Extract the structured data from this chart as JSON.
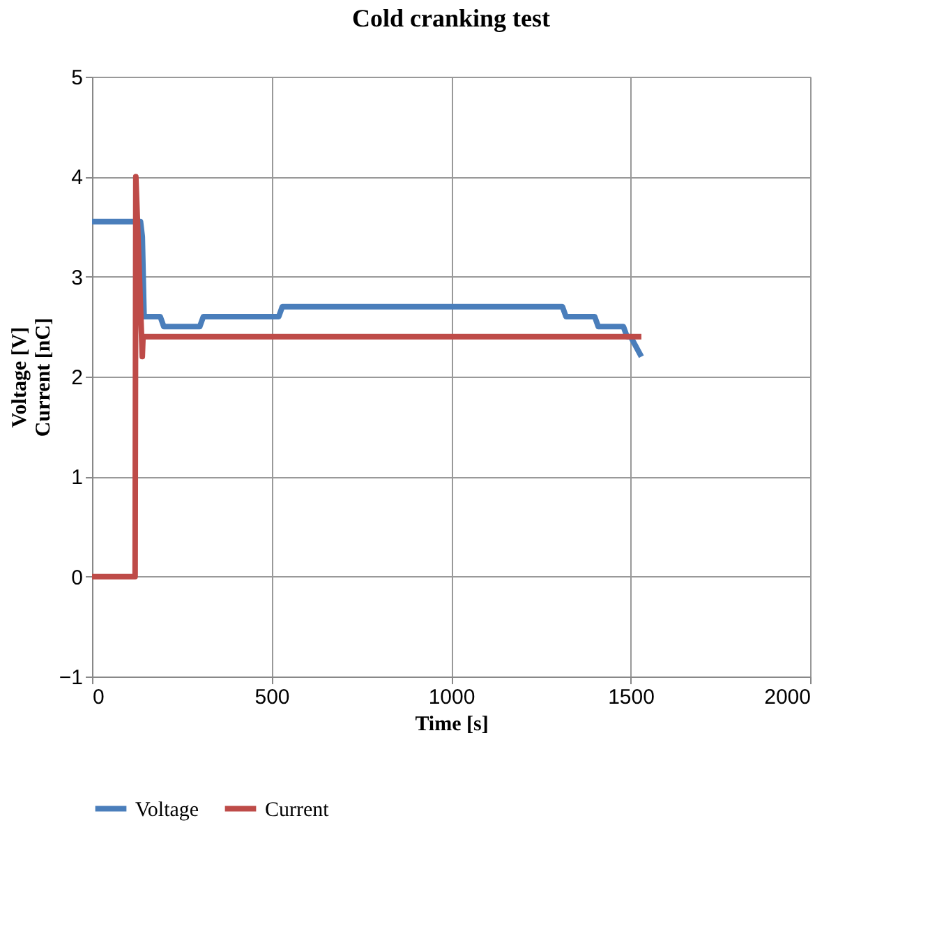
{
  "chart_data": {
    "type": "line",
    "title": "Cold cranking test",
    "xlabel": "Time [s]",
    "ylabel": "Voltage [V]\nCurrent [nC]",
    "xlim": [
      0,
      2000
    ],
    "xticks": [
      0,
      500,
      1000,
      1500,
      2000
    ],
    "ylim": [
      -1,
      5
    ],
    "yticks": [
      -1,
      0,
      1,
      2,
      3,
      4,
      5
    ],
    "grid": true,
    "legend": "bottom",
    "marker": "none",
    "line_style": "solid",
    "series": [
      {
        "name": "Voltage",
        "color": "#4a7ebb",
        "x": [
          0,
          125,
          135,
          140,
          145,
          190,
          200,
          300,
          310,
          520,
          530,
          1310,
          1320,
          1400,
          1410,
          1480,
          1490,
          1500,
          1530
        ],
        "values": [
          3.55,
          3.55,
          3.55,
          3.4,
          2.6,
          2.6,
          2.5,
          2.5,
          2.6,
          2.6,
          2.7,
          2.7,
          2.6,
          2.6,
          2.5,
          2.5,
          2.4,
          2.4,
          2.2
        ]
      },
      {
        "name": "Current",
        "color": "#be4b48",
        "x": [
          0,
          120,
          122,
          140,
          142,
          1530
        ],
        "values": [
          0,
          0,
          4,
          2.2,
          2.4,
          2.4
        ]
      }
    ]
  }
}
